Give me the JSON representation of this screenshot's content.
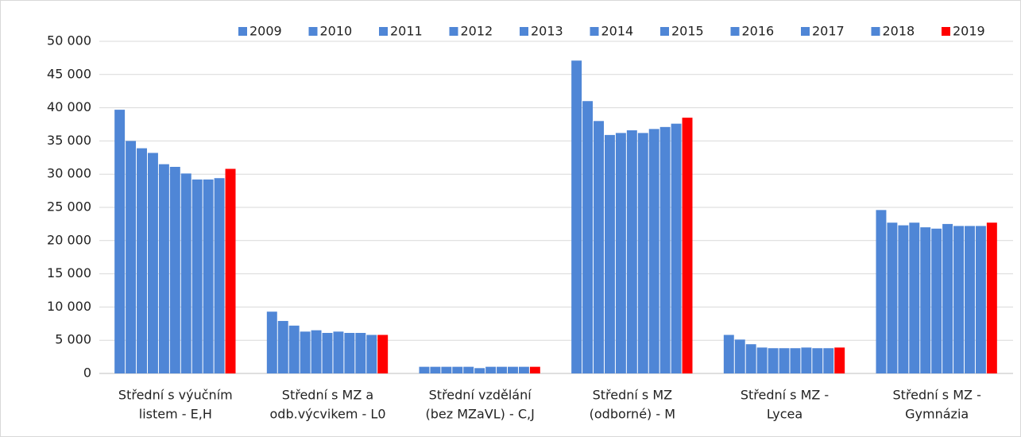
{
  "chart_data": {
    "type": "bar",
    "categories": [
      [
        "Střední s výučním",
        "listem - E,H"
      ],
      [
        "Střední s MZ a",
        "odb.výcvikem - L0"
      ],
      [
        "Střední vzdělání",
        "(bez MZaVL) - C,J"
      ],
      [
        "Střední s MZ",
        "(odborné) - M"
      ],
      [
        "Střední s MZ -",
        "Lycea"
      ],
      [
        "Střední s MZ -",
        "Gymnázia"
      ]
    ],
    "series": [
      {
        "name": "2009",
        "color": "#4f86d6",
        "values": [
          39700,
          9300,
          1000,
          47100,
          5800,
          24600
        ]
      },
      {
        "name": "2010",
        "color": "#4f86d6",
        "values": [
          35000,
          7900,
          1000,
          41000,
          5100,
          22700
        ]
      },
      {
        "name": "2011",
        "color": "#4f86d6",
        "values": [
          33900,
          7200,
          1000,
          38000,
          4400,
          22300
        ]
      },
      {
        "name": "2012",
        "color": "#4f86d6",
        "values": [
          33200,
          6300,
          1000,
          35900,
          3900,
          22700
        ]
      },
      {
        "name": "2013",
        "color": "#4f86d6",
        "values": [
          31500,
          6500,
          1000,
          36200,
          3800,
          22000
        ]
      },
      {
        "name": "2014",
        "color": "#4f86d6",
        "values": [
          31100,
          6100,
          800,
          36600,
          3800,
          21800
        ]
      },
      {
        "name": "2015",
        "color": "#4f86d6",
        "values": [
          30100,
          6300,
          1000,
          36200,
          3800,
          22500
        ]
      },
      {
        "name": "2016",
        "color": "#4f86d6",
        "values": [
          29200,
          6100,
          1000,
          36800,
          3900,
          22200
        ]
      },
      {
        "name": "2017",
        "color": "#4f86d6",
        "values": [
          29200,
          6100,
          1000,
          37100,
          3800,
          22200
        ]
      },
      {
        "name": "2018",
        "color": "#4f86d6",
        "values": [
          29400,
          5800,
          1000,
          37600,
          3800,
          22200
        ]
      },
      {
        "name": "2019",
        "color": "#ff0000",
        "values": [
          30800,
          5800,
          1000,
          38500,
          3900,
          22700
        ]
      }
    ],
    "ylim": [
      0,
      50000
    ],
    "yticks": [
      0,
      {
        "value": 5000,
        "label": "5 000"
      },
      {
        "value": 10000,
        "label": "10 000"
      },
      {
        "value": 15000,
        "label": "15 000"
      },
      {
        "value": 20000,
        "label": "20 000"
      },
      {
        "value": 25000,
        "label": "25 000"
      },
      {
        "value": 30000,
        "label": "30 000"
      },
      {
        "value": 35000,
        "label": "35 000"
      },
      {
        "value": 40000,
        "label": "40 000"
      },
      {
        "value": 45000,
        "label": "45 000"
      },
      {
        "value": 50000,
        "label": "50 000"
      }
    ],
    "grid": true,
    "legend": "top"
  }
}
